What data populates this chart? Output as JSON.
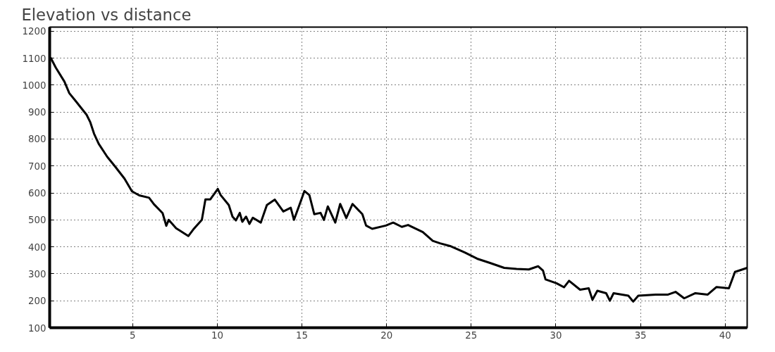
{
  "chart_data": {
    "type": "line",
    "title": "Elevation vs distance",
    "xlim": [
      0.1,
      41.3
    ],
    "ylim": [
      100,
      1215
    ],
    "xticks": [
      5,
      10,
      15,
      20,
      25,
      30,
      35,
      40
    ],
    "yticks": [
      100,
      200,
      300,
      400,
      500,
      600,
      700,
      800,
      900,
      1000,
      1100,
      1200
    ],
    "grid": true,
    "marker": "none",
    "line_style": "solid",
    "series": [
      {
        "color": "#000000",
        "x": [
          0.1,
          0.17,
          0.46,
          0.97,
          1.26,
          1.62,
          2.28,
          2.5,
          2.72,
          3.0,
          3.5,
          3.94,
          4.52,
          4.96,
          5.39,
          5.97,
          6.26,
          6.77,
          6.99,
          7.13,
          7.57,
          8.29,
          8.58,
          9.09,
          9.3,
          9.59,
          10.03,
          10.2,
          10.68,
          10.9,
          11.1,
          11.33,
          11.48,
          11.7,
          11.9,
          12.1,
          12.57,
          12.93,
          13.4,
          13.9,
          14.34,
          14.53,
          14.85,
          15.15,
          15.44,
          15.73,
          16.1,
          16.3,
          16.53,
          16.97,
          17.26,
          17.62,
          17.99,
          18.57,
          18.79,
          19.15,
          19.96,
          20.39,
          20.9,
          21.27,
          22.14,
          22.73,
          23.16,
          23.75,
          24.62,
          25.35,
          26.08,
          26.95,
          27.68,
          28.4,
          28.95,
          29.24,
          29.39,
          30.04,
          30.48,
          30.78,
          31.43,
          31.94,
          32.16,
          32.45,
          32.97,
          33.19,
          33.41,
          34.28,
          34.57,
          34.87,
          35.9,
          36.63,
          37.07,
          37.58,
          38.24,
          38.97,
          39.49,
          40.22,
          40.58,
          41.3
        ],
        "values": [
          1100,
          1100,
          1065,
          1013,
          970,
          942,
          890,
          862,
          820,
          782,
          734,
          700,
          653,
          606,
          591,
          582,
          558,
          525,
          478,
          500,
          469,
          440,
          464,
          500,
          576,
          576,
          615,
          592,
          555,
          512,
          498,
          526,
          493,
          512,
          485,
          508,
          490,
          555,
          575,
          531,
          545,
          500,
          555,
          607,
          592,
          521,
          526,
          500,
          550,
          490,
          559,
          507,
          559,
          521,
          479,
          467,
          479,
          490,
          474,
          481,
          455,
          422,
          413,
          403,
          379,
          356,
          341,
          322,
          318,
          316,
          328,
          312,
          279,
          265,
          250,
          274,
          241,
          246,
          204,
          237,
          228,
          200,
          228,
          219,
          197,
          219,
          223,
          223,
          233,
          209,
          228,
          223,
          251,
          246,
          307,
          322
        ]
      }
    ]
  }
}
